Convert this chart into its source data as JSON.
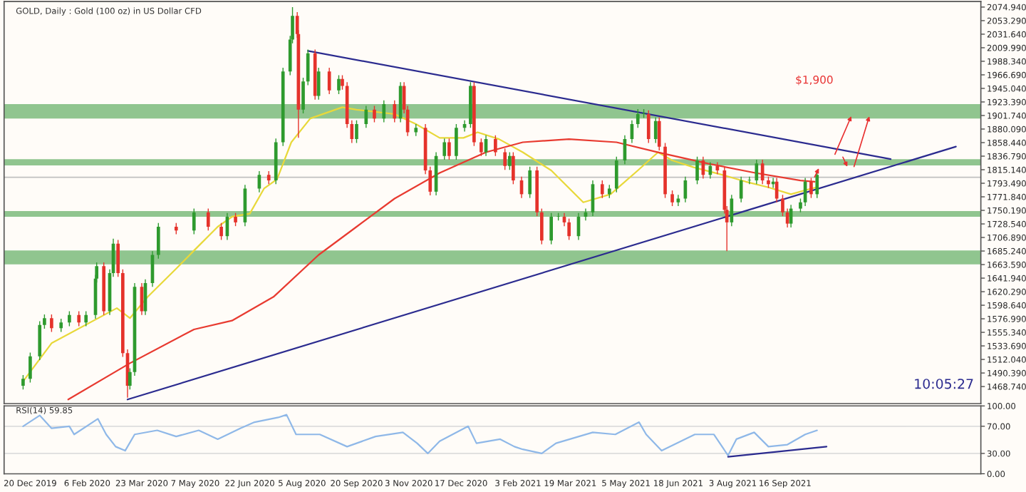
{
  "chart_data": [
    {
      "type": "candlestick",
      "title": "GOLD, Daily : Gold (100 oz) in US Dollar CFD",
      "x": [
        "2019-12-14",
        "2019-12-20",
        "2019-12-28",
        "2020-01-01",
        "2020-01-07",
        "2020-01-15",
        "2020-01-22",
        "2020-01-30",
        "2020-02-05",
        "2020-02-13",
        "2020-02-14",
        "2020-02-20",
        "2020-02-25",
        "2020-02-28",
        "2020-03-03",
        "2020-03-07",
        "2020-03-11",
        "2020-03-13",
        "2020-03-17",
        "2020-03-23",
        "2020-03-26",
        "2020-04-01",
        "2020-04-06",
        "2020-04-21",
        "2020-05-06",
        "2020-05-18",
        "2020-05-29",
        "2020-06-03",
        "2020-06-10",
        "2020-06-18",
        "2020-06-30",
        "2020-07-08",
        "2020-07-14",
        "2020-07-20",
        "2020-07-26",
        "2020-07-28",
        "2020-08-01",
        "2020-08-02",
        "2020-08-06",
        "2020-08-10",
        "2020-08-16",
        "2020-08-19",
        "2020-08-28",
        "2020-09-05",
        "2020-09-08",
        "2020-09-12",
        "2020-09-16",
        "2020-09-20",
        "2020-09-28",
        "2020-10-05",
        "2020-10-13",
        "2020-10-22",
        "2020-10-27",
        "2020-10-30",
        "2020-11-02",
        "2020-11-09",
        "2020-11-17",
        "2020-11-21",
        "2020-11-26",
        "2020-12-03",
        "2020-12-07",
        "2020-12-13",
        "2020-12-20",
        "2020-12-25",
        "2020-12-28",
        "2021-01-03",
        "2021-01-07",
        "2021-01-15",
        "2021-01-23",
        "2021-01-27",
        "2021-01-30",
        "2021-02-06",
        "2021-02-13",
        "2021-02-19",
        "2021-02-23",
        "2021-03-03",
        "2021-03-09",
        "2021-03-14",
        "2021-03-18",
        "2021-03-26",
        "2021-04-01",
        "2021-04-07",
        "2021-04-15",
        "2021-04-21",
        "2021-04-27",
        "2021-05-04",
        "2021-05-10",
        "2021-05-15",
        "2021-05-20",
        "2021-05-24",
        "2021-05-30",
        "2021-06-02",
        "2021-06-07",
        "2021-06-13",
        "2021-06-18",
        "2021-06-24",
        "2021-07-04",
        "2021-07-09",
        "2021-07-15",
        "2021-07-21",
        "2021-07-27",
        "2021-07-29",
        "2021-08-02",
        "2021-08-10",
        "2021-08-17",
        "2021-08-23",
        "2021-08-28",
        "2021-09-02",
        "2021-09-06",
        "2021-09-09",
        "2021-09-14",
        "2021-09-18",
        "2021-09-21",
        "2021-09-29",
        "2021-10-03",
        "2021-10-08",
        "2021-10-13"
      ],
      "ohlc": [
        [
          1470,
          1487,
          1464,
          1481
        ],
        [
          1481,
          1523,
          1475,
          1517
        ],
        [
          1517,
          1573,
          1511,
          1567
        ],
        [
          1567,
          1584,
          1561,
          1578
        ],
        [
          1578,
          1584,
          1556,
          1562
        ],
        [
          1562,
          1577,
          1556,
          1571
        ],
        [
          1571,
          1589,
          1565,
          1583
        ],
        [
          1583,
          1589,
          1565,
          1571
        ],
        [
          1571,
          1589,
          1565,
          1583
        ],
        [
          1583,
          1647,
          1577,
          1641
        ],
        [
          1641,
          1667,
          1635,
          1661
        ],
        [
          1661,
          1667,
          1583,
          1589
        ],
        [
          1589,
          1656,
          1583,
          1650
        ],
        [
          1650,
          1705,
          1644,
          1697
        ],
        [
          1697,
          1703,
          1644,
          1650
        ],
        [
          1650,
          1656,
          1516,
          1522
        ],
        [
          1522,
          1528,
          1451,
          1470
        ],
        [
          1470,
          1498,
          1464,
          1492
        ],
        [
          1492,
          1634,
          1486,
          1628
        ],
        [
          1628,
          1634,
          1583,
          1589
        ],
        [
          1589,
          1640,
          1583,
          1634
        ],
        [
          1634,
          1685,
          1628,
          1679
        ],
        [
          1679,
          1730,
          1673,
          1724
        ],
        [
          1724,
          1730,
          1712,
          1718
        ],
        [
          1718,
          1753,
          1712,
          1747
        ],
        [
          1747,
          1753,
          1718,
          1724
        ],
        [
          1724,
          1730,
          1703,
          1709
        ],
        [
          1709,
          1746,
          1703,
          1740
        ],
        [
          1740,
          1746,
          1725,
          1731
        ],
        [
          1731,
          1791,
          1725,
          1785
        ],
        [
          1785,
          1813,
          1779,
          1807
        ],
        [
          1807,
          1813,
          1792,
          1798
        ],
        [
          1798,
          1865,
          1792,
          1859
        ],
        [
          1859,
          1978,
          1853,
          1972
        ],
        [
          1972,
          2029,
          1966,
          2023
        ],
        [
          2023,
          2075,
          2017,
          2061
        ],
        [
          2061,
          2067,
          2026,
          2032
        ],
        [
          2032,
          2038,
          1866,
          1911
        ],
        [
          1911,
          1962,
          1905,
          1956
        ],
        [
          1956,
          2007,
          1950,
          2001
        ],
        [
          2001,
          2007,
          1927,
          1933
        ],
        [
          1933,
          1978,
          1927,
          1972
        ],
        [
          1972,
          1978,
          1936,
          1942
        ],
        [
          1942,
          1966,
          1936,
          1960
        ],
        [
          1960,
          1966,
          1943,
          1949
        ],
        [
          1949,
          1955,
          1882,
          1888
        ],
        [
          1888,
          1894,
          1858,
          1864
        ],
        [
          1864,
          1894,
          1858,
          1888
        ],
        [
          1888,
          1917,
          1882,
          1911
        ],
        [
          1911,
          1917,
          1891,
          1897
        ],
        [
          1897,
          1926,
          1891,
          1920
        ],
        [
          1920,
          1926,
          1891,
          1897
        ],
        [
          1897,
          1955,
          1891,
          1949
        ],
        [
          1949,
          1955,
          1905,
          1911
        ],
        [
          1911,
          1917,
          1869,
          1875
        ],
        [
          1875,
          1888,
          1869,
          1882
        ],
        [
          1882,
          1888,
          1808,
          1814
        ],
        [
          1814,
          1820,
          1774,
          1780
        ],
        [
          1780,
          1843,
          1774,
          1837
        ],
        [
          1837,
          1865,
          1831,
          1859
        ],
        [
          1859,
          1865,
          1831,
          1837
        ],
        [
          1837,
          1888,
          1831,
          1882
        ],
        [
          1882,
          1894,
          1876,
          1888
        ],
        [
          1888,
          1955,
          1882,
          1949
        ],
        [
          1949,
          1955,
          1853,
          1859
        ],
        [
          1859,
          1865,
          1837,
          1843
        ],
        [
          1843,
          1870,
          1837,
          1864
        ],
        [
          1864,
          1870,
          1837,
          1843
        ],
        [
          1843,
          1849,
          1815,
          1821
        ],
        [
          1821,
          1843,
          1815,
          1837
        ],
        [
          1837,
          1843,
          1792,
          1798
        ],
        [
          1798,
          1804,
          1770,
          1776
        ],
        [
          1776,
          1820,
          1770,
          1814
        ],
        [
          1814,
          1820,
          1741,
          1747
        ],
        [
          1747,
          1753,
          1696,
          1702
        ],
        [
          1702,
          1746,
          1696,
          1740
        ],
        [
          1740,
          1746,
          1734,
          1740
        ],
        [
          1740,
          1746,
          1725,
          1731
        ],
        [
          1731,
          1737,
          1703,
          1709
        ],
        [
          1709,
          1746,
          1703,
          1740
        ],
        [
          1740,
          1753,
          1734,
          1747
        ],
        [
          1747,
          1798,
          1741,
          1792
        ],
        [
          1792,
          1798,
          1770,
          1776
        ],
        [
          1776,
          1791,
          1770,
          1785
        ],
        [
          1785,
          1836,
          1779,
          1830
        ],
        [
          1830,
          1870,
          1824,
          1864
        ],
        [
          1864,
          1894,
          1858,
          1888
        ],
        [
          1888,
          1912,
          1882,
          1904
        ],
        [
          1904,
          1912,
          1898,
          1904
        ],
        [
          1904,
          1910,
          1858,
          1864
        ],
        [
          1864,
          1899,
          1858,
          1893
        ],
        [
          1893,
          1899,
          1846,
          1852
        ],
        [
          1852,
          1858,
          1770,
          1776
        ],
        [
          1776,
          1782,
          1757,
          1763
        ],
        [
          1763,
          1775,
          1757,
          1769
        ],
        [
          1769,
          1804,
          1763,
          1798
        ],
        [
          1798,
          1836,
          1792,
          1830
        ],
        [
          1830,
          1836,
          1801,
          1807
        ],
        [
          1807,
          1827,
          1801,
          1821
        ],
        [
          1821,
          1827,
          1808,
          1814
        ],
        [
          1814,
          1820,
          1745,
          1751
        ],
        [
          1751,
          1757,
          1685,
          1731
        ],
        [
          1731,
          1775,
          1725,
          1769
        ],
        [
          1769,
          1804,
          1763,
          1798
        ],
        [
          1798,
          1804,
          1792,
          1798
        ],
        [
          1798,
          1831,
          1792,
          1825
        ],
        [
          1825,
          1831,
          1792,
          1798
        ],
        [
          1798,
          1804,
          1786,
          1792
        ],
        [
          1792,
          1802,
          1786,
          1796
        ],
        [
          1796,
          1802,
          1763,
          1769
        ],
        [
          1769,
          1775,
          1741,
          1747
        ],
        [
          1747,
          1753,
          1723,
          1729
        ],
        [
          1729,
          1759,
          1723,
          1753
        ],
        [
          1753,
          1769,
          1747,
          1763
        ],
        [
          1763,
          1802,
          1757,
          1796
        ],
        [
          1796,
          1802,
          1770,
          1776
        ],
        [
          1776,
          1813,
          1770,
          1807
        ]
      ],
      "colors": [
        "#2e9a2e",
        "#2e9a2e",
        "#2e9a2e",
        "#2e9a2e",
        "#e5322b",
        "#2e9a2e",
        "#2e9a2e",
        "#e5322b",
        "#2e9a2e",
        "#2e9a2e",
        "#2e9a2e",
        "#e5322b",
        "#2e9a2e",
        "#2e9a2e",
        "#e5322b",
        "#e5322b",
        "#e5322b",
        "#2e9a2e",
        "#2e9a2e",
        "#e5322b",
        "#2e9a2e",
        "#2e9a2e",
        "#2e9a2e",
        "#e5322b",
        "#2e9a2e",
        "#e5322b",
        "#e5322b",
        "#2e9a2e",
        "#e5322b",
        "#2e9a2e",
        "#2e9a2e",
        "#e5322b",
        "#2e9a2e",
        "#2e9a2e",
        "#2e9a2e",
        "#2e9a2e",
        "#e5322b",
        "#e5322b",
        "#2e9a2e",
        "#2e9a2e",
        "#e5322b",
        "#2e9a2e",
        "#e5322b",
        "#2e9a2e",
        "#e5322b",
        "#e5322b",
        "#e5322b",
        "#2e9a2e",
        "#2e9a2e",
        "#e5322b",
        "#2e9a2e",
        "#e5322b",
        "#2e9a2e",
        "#e5322b",
        "#e5322b",
        "#2e9a2e",
        "#e5322b",
        "#e5322b",
        "#2e9a2e",
        "#2e9a2e",
        "#e5322b",
        "#2e9a2e",
        "#2e9a2e",
        "#2e9a2e",
        "#e5322b",
        "#e5322b",
        "#2e9a2e",
        "#e5322b",
        "#e5322b",
        "#2e9a2e",
        "#e5322b",
        "#e5322b",
        "#2e9a2e",
        "#e5322b",
        "#e5322b",
        "#2e9a2e",
        "#2e9a2e",
        "#e5322b",
        "#e5322b",
        "#2e9a2e",
        "#2e9a2e",
        "#2e9a2e",
        "#e5322b",
        "#2e9a2e",
        "#2e9a2e",
        "#2e9a2e",
        "#2e9a2e",
        "#2e9a2e",
        "#2e9a2e",
        "#e5322b",
        "#2e9a2e",
        "#e5322b",
        "#e5322b",
        "#e5322b",
        "#2e9a2e",
        "#2e9a2e",
        "#2e9a2e",
        "#e5322b",
        "#2e9a2e",
        "#e5322b",
        "#e5322b",
        "#e5322b",
        "#2e9a2e",
        "#2e9a2e",
        "#2e9a2e",
        "#2e9a2e",
        "#e5322b",
        "#e5322b",
        "#2e9a2e",
        "#e5322b",
        "#e5322b",
        "#e5322b",
        "#2e9a2e",
        "#2e9a2e",
        "#2e9a2e",
        "#e5322b",
        "#2e9a2e"
      ],
      "series": [
        {
          "type": "line",
          "color": "#e8d83a",
          "x": [
            "2019-12-14",
            "2020-01-07",
            "2020-03-02",
            "2020-03-13",
            "2020-03-28",
            "2020-04-21",
            "2020-05-06",
            "2020-05-26",
            "2020-06-07",
            "2020-06-22",
            "2020-07-04",
            "2020-07-15",
            "2020-07-27",
            "2020-08-12",
            "2020-09-08",
            "2020-09-20",
            "2020-10-22",
            "2020-11-09",
            "2020-11-29",
            "2020-12-19",
            "2020-12-31",
            "2021-01-18",
            "2021-02-07",
            "2021-03-03",
            "2021-03-30",
            "2021-04-22",
            "2021-05-15",
            "2021-06-01",
            "2021-06-13",
            "2021-07-01",
            "2021-07-25",
            "2021-08-14",
            "2021-09-02",
            "2021-09-21",
            "2021-10-08",
            "2021-10-13"
          ],
          "values": [
            1477,
            1538,
            1594,
            1578,
            1612,
            1657,
            1686,
            1724,
            1740,
            1745,
            1785,
            1800,
            1859,
            1897,
            1915,
            1911,
            1904,
            1888,
            1866,
            1866,
            1875,
            1864,
            1843,
            1814,
            1763,
            1776,
            1814,
            1843,
            1830,
            1819,
            1807,
            1796,
            1787,
            1776,
            1785,
            1787
          ]
        },
        {
          "type": "line",
          "color": "#e83a30",
          "x": [
            "2020-01-21",
            "2020-03-13",
            "2020-05-06",
            "2020-06-07",
            "2020-07-12",
            "2020-08-19",
            "2020-09-20",
            "2020-10-22",
            "2020-11-29",
            "2021-01-07",
            "2021-02-07",
            "2021-03-18",
            "2021-04-27",
            "2021-06-01",
            "2021-07-13",
            "2021-08-22",
            "2021-09-29",
            "2021-10-11"
          ],
          "values": [
            1448,
            1506,
            1560,
            1574,
            1612,
            1679,
            1724,
            1769,
            1810,
            1843,
            1859,
            1864,
            1859,
            1843,
            1825,
            1810,
            1798,
            1796
          ]
        },
        {
          "type": "line",
          "color": "#2b2b8f",
          "x": [
            "2020-08-10",
            "2021-12-14"
          ],
          "values": [
            2005,
            1832
          ]
        },
        {
          "type": "line",
          "color": "#2b2b8f",
          "x": [
            "2020-03-11",
            "2022-02-07"
          ],
          "values": [
            1448,
            1852
          ]
        }
      ],
      "bands": [
        {
          "axis": "y",
          "from": 1897,
          "to": 1920,
          "color": "#7dbb7d"
        },
        {
          "axis": "y",
          "from": 1822,
          "to": 1832,
          "color": "#7dbb7d"
        },
        {
          "axis": "y",
          "from": 1740,
          "to": 1749,
          "color": "#7dbb7d"
        },
        {
          "axis": "y",
          "from": 1664,
          "to": 1686,
          "color": "#7dbb7d"
        }
      ],
      "ref_lines": [
        {
          "axis": "y",
          "value": 1803,
          "color": "#c0c0c0"
        }
      ],
      "annotations": [
        "$1,900",
        "10:05:27"
      ],
      "ylim": [
        1441.5,
        2083.9
      ],
      "yticks": [
        {
          "value": 2074.94,
          "label": "2074.940"
        },
        {
          "value": 2053.29,
          "label": "2053.290"
        },
        {
          "value": 2031.64,
          "label": "2031.640"
        },
        {
          "value": 2009.99,
          "label": "2009.990"
        },
        {
          "value": 1988.34,
          "label": "1988.340"
        },
        {
          "value": 1966.69,
          "label": "1966.690"
        },
        {
          "value": 1945.04,
          "label": "1945.040"
        },
        {
          "value": 1923.39,
          "label": "1923.390"
        },
        {
          "value": 1901.74,
          "label": "1901.740"
        },
        {
          "value": 1880.09,
          "label": "1880.090"
        },
        {
          "value": 1858.44,
          "label": "1858.440"
        },
        {
          "value": 1836.79,
          "label": "1836.790"
        },
        {
          "value": 1815.14,
          "label": "1815.140"
        },
        {
          "value": 1793.49,
          "label": "1793.490"
        },
        {
          "value": 1771.84,
          "label": "1771.840"
        },
        {
          "value": 1750.19,
          "label": "1750.190"
        },
        {
          "value": 1728.54,
          "label": "1728.540"
        },
        {
          "value": 1706.89,
          "label": "1706.890"
        },
        {
          "value": 1685.24,
          "label": "1685.240"
        },
        {
          "value": 1663.59,
          "label": "1663.590"
        },
        {
          "value": 1641.94,
          "label": "1641.940"
        },
        {
          "value": 1620.29,
          "label": "1620.290"
        },
        {
          "value": 1598.64,
          "label": "1598.640"
        },
        {
          "value": 1576.99,
          "label": "1576.990"
        },
        {
          "value": 1555.34,
          "label": "1555.340"
        },
        {
          "value": 1533.69,
          "label": "1533.690"
        },
        {
          "value": 1512.04,
          "label": "1512.040"
        },
        {
          "value": 1490.39,
          "label": "1490.390"
        },
        {
          "value": 1468.74,
          "label": "1468.740"
        }
      ],
      "xlim": [
        "2019-11-28",
        "2022-02-28"
      ],
      "tick_labels": "y"
    },
    {
      "type": "line",
      "title": "RSI(14) 59.85",
      "series": [
        {
          "type": "line",
          "color": "#8fb8e8",
          "x": [
            "2019-12-14",
            "2019-12-28",
            "2020-01-07",
            "2020-01-22",
            "2020-01-26",
            "2020-02-15",
            "2020-02-22",
            "2020-03-01",
            "2020-03-09",
            "2020-03-17",
            "2020-04-05",
            "2020-04-21",
            "2020-05-10",
            "2020-05-26",
            "2020-06-14",
            "2020-06-26",
            "2020-07-16",
            "2020-07-23",
            "2020-07-31",
            "2020-08-20",
            "2020-09-12",
            "2020-10-06",
            "2020-10-29",
            "2020-11-10",
            "2020-11-19",
            "2020-11-29",
            "2020-12-23",
            "2020-12-30",
            "2021-01-19",
            "2021-01-31",
            "2021-02-07",
            "2021-02-23",
            "2021-03-07",
            "2021-04-07",
            "2021-04-26",
            "2021-05-16",
            "2021-05-22",
            "2021-06-04",
            "2021-07-02",
            "2021-07-18",
            "2021-07-30",
            "2021-08-06",
            "2021-08-21",
            "2021-09-02",
            "2021-09-18",
            "2021-10-03",
            "2021-10-13"
          ],
          "values": [
            70,
            86,
            67,
            70,
            58,
            81,
            58,
            40,
            34,
            58,
            64,
            55,
            64,
            51,
            67,
            76,
            83,
            87,
            58,
            58,
            40,
            55,
            61,
            45,
            30,
            48,
            70,
            45,
            51,
            40,
            36,
            30,
            45,
            61,
            58,
            76,
            58,
            34,
            58,
            58,
            27,
            51,
            61,
            40,
            43,
            58,
            64
          ]
        },
        {
          "type": "line",
          "color": "#2b2b8f",
          "x": [
            "2021-07-30",
            "2021-10-21"
          ],
          "values": [
            25,
            40
          ]
        }
      ],
      "ref_lines": [
        {
          "axis": "y",
          "value": 30,
          "color": "#dddddd"
        },
        {
          "axis": "y",
          "value": 70,
          "color": "#dddddd"
        }
      ],
      "xlim": [
        "2019-11-28",
        "2022-02-28"
      ],
      "xticks": [
        {
          "value": "2019-12-20",
          "label": "20 Dec 2019"
        },
        {
          "value": "2020-02-06",
          "label": "6 Feb 2020"
        },
        {
          "value": "2020-03-23",
          "label": "23 Mar 2020"
        },
        {
          "value": "2020-05-07",
          "label": "7 May 2020"
        },
        {
          "value": "2020-06-22",
          "label": "22 Jun 2020"
        },
        {
          "value": "2020-08-05",
          "label": "5 Aug 2020"
        },
        {
          "value": "2020-09-20",
          "label": "20 Sep 2020"
        },
        {
          "value": "2020-11-03",
          "label": "3 Nov 2020"
        },
        {
          "value": "2020-12-17",
          "label": "17 Dec 2020"
        },
        {
          "value": "2021-02-03",
          "label": "3 Feb 2021"
        },
        {
          "value": "2021-03-19",
          "label": "19 Mar 2021"
        },
        {
          "value": "2021-05-05",
          "label": "5 May 2021"
        },
        {
          "value": "2021-06-18",
          "label": "18 Jun 2021"
        },
        {
          "value": "2021-08-03",
          "label": "3 Aug 2021"
        },
        {
          "value": "2021-09-16",
          "label": "16 Sep 2021"
        }
      ],
      "ylim": [
        0,
        100
      ],
      "yticks": [
        {
          "value": 0,
          "label": "0.00"
        },
        {
          "value": 30,
          "label": "30.00"
        },
        {
          "value": 70,
          "label": "70.00"
        },
        {
          "value": 100,
          "label": "100.00"
        }
      ]
    }
  ]
}
